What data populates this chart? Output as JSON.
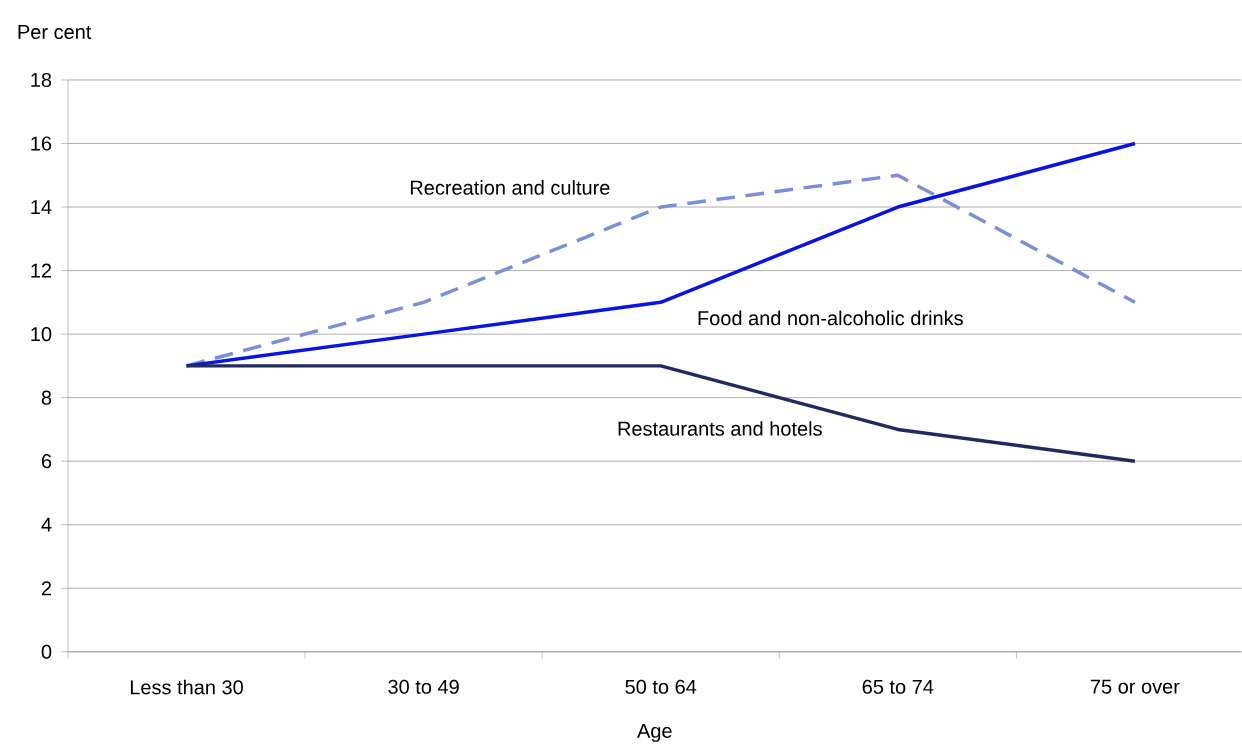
{
  "chart_data": {
    "type": "line",
    "xlabel": "Age",
    "ylabel": "Per cent",
    "categories": [
      "Less than 30",
      "30 to 49",
      "50 to 64",
      "65 to 74",
      "75 or over"
    ],
    "series": [
      {
        "name": "Recreation and culture",
        "color": "#7b8ed6",
        "line_style": "dashed",
        "values": [
          9,
          11,
          14,
          15,
          11
        ]
      },
      {
        "name": "Food and non-alcoholic drinks",
        "color": "#0a14e0",
        "values": [
          9,
          10,
          11,
          14,
          16
        ]
      },
      {
        "name": "Restaurants and hotels",
        "color": "#1f2a5e",
        "values": [
          9,
          9,
          9,
          7,
          6
        ]
      }
    ],
    "ylim": [
      0,
      18
    ],
    "yticks": [
      0,
      2,
      4,
      6,
      8,
      10,
      12,
      14,
      16,
      18
    ],
    "grid": "y"
  }
}
